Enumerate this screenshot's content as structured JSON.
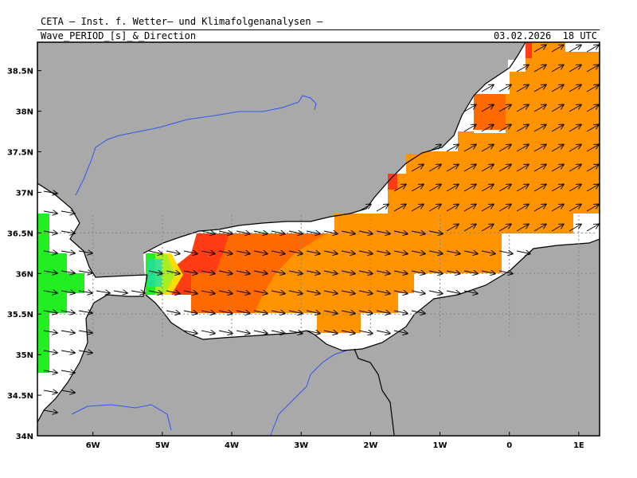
{
  "header": {
    "institution": "CETA – Inst. f. Wetter– und Klimafolgenanalysen –",
    "parameter": "Wave_PERIOD_[s]_&_Direction",
    "datetime": "03.02.2026  18 UTC"
  },
  "axes": {
    "lat_labels": [
      {
        "text": "38.5N",
        "value": 38.5
      },
      {
        "text": "38N",
        "value": 38.0
      },
      {
        "text": "37.5N",
        "value": 37.5
      },
      {
        "text": "37N",
        "value": 37.0
      },
      {
        "text": "36.5N",
        "value": 36.5
      },
      {
        "text": "36N",
        "value": 36.0
      },
      {
        "text": "35.5N",
        "value": 35.5
      },
      {
        "text": "35N",
        "value": 35.0
      },
      {
        "text": "34.5N",
        "value": 34.5
      },
      {
        "text": "34N",
        "value": 34.0
      }
    ],
    "lon_labels": [
      {
        "text": "6W",
        "value": -6
      },
      {
        "text": "5W",
        "value": -5
      },
      {
        "text": "4W",
        "value": -4
      },
      {
        "text": "3W",
        "value": -3
      },
      {
        "text": "2W",
        "value": -2
      },
      {
        "text": "1W",
        "value": -1
      },
      {
        "text": "0",
        "value": 0
      },
      {
        "text": "1E",
        "value": 1
      }
    ],
    "lon_range": [
      -6.8,
      1.3
    ],
    "lat_range": [
      34.0,
      38.85
    ]
  },
  "colors": {
    "land": "#a9a9a9",
    "sea": "#ffffff",
    "river": "#3355ee",
    "wave_orange": "#ff9400",
    "wave_dark_orange": "#ff6a00",
    "wave_red_orange": "#ff3c14",
    "wave_green": "#22ee22",
    "arrow": "#000000"
  }
}
